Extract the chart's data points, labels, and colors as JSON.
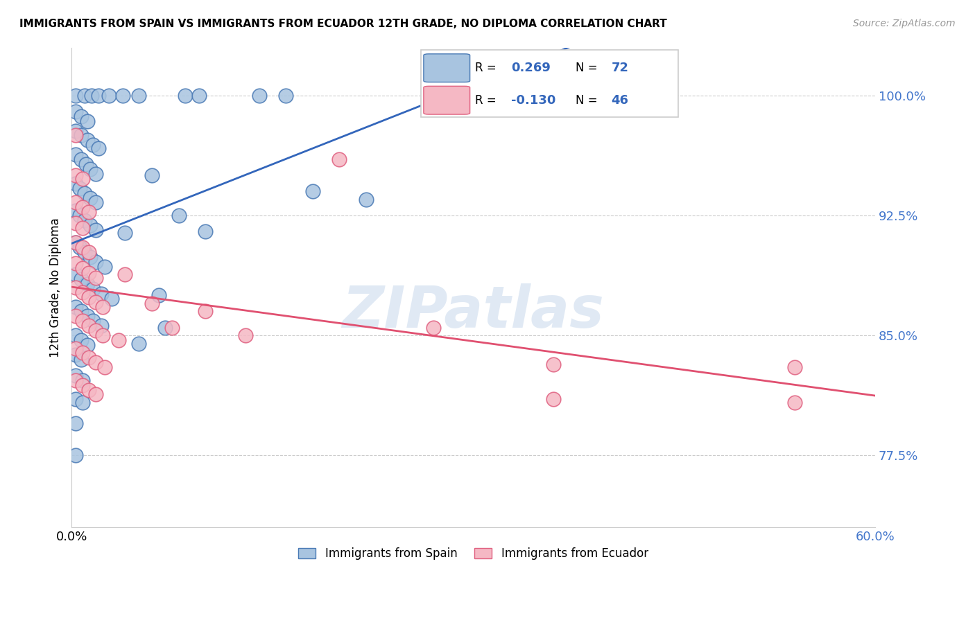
{
  "title": "IMMIGRANTS FROM SPAIN VS IMMIGRANTS FROM ECUADOR 12TH GRADE, NO DIPLOMA CORRELATION CHART",
  "source": "Source: ZipAtlas.com",
  "ylabel": "12th Grade, No Diploma",
  "legend_label_blue": "Immigrants from Spain",
  "legend_label_pink": "Immigrants from Ecuador",
  "watermark": "ZIPatlas",
  "blue_R": 0.269,
  "blue_N": 72,
  "pink_R": -0.13,
  "pink_N": 46,
  "blue_color": "#A8C4E0",
  "blue_edge_color": "#4A7AB5",
  "pink_color": "#F5B8C4",
  "pink_edge_color": "#E06080",
  "blue_line_color": "#3366BB",
  "pink_line_color": "#E05070",
  "ytick_color": "#4477CC",
  "xlim": [
    0.0,
    0.6
  ],
  "ylim": [
    0.73,
    1.03
  ],
  "yticks": [
    0.775,
    0.85,
    0.925,
    1.0
  ],
  "ytick_labels": [
    "77.5%",
    "85.0%",
    "92.5%",
    "100.0%"
  ],
  "blue_points": [
    [
      0.003,
      1.0
    ],
    [
      0.01,
      1.0
    ],
    [
      0.015,
      1.0
    ],
    [
      0.02,
      1.0
    ],
    [
      0.028,
      1.0
    ],
    [
      0.038,
      1.0
    ],
    [
      0.05,
      1.0
    ],
    [
      0.085,
      1.0
    ],
    [
      0.095,
      1.0
    ],
    [
      0.14,
      1.0
    ],
    [
      0.16,
      1.0
    ],
    [
      0.32,
      1.0
    ],
    [
      0.003,
      0.99
    ],
    [
      0.007,
      0.987
    ],
    [
      0.012,
      0.984
    ],
    [
      0.003,
      0.978
    ],
    [
      0.007,
      0.975
    ],
    [
      0.012,
      0.972
    ],
    [
      0.016,
      0.969
    ],
    [
      0.02,
      0.967
    ],
    [
      0.003,
      0.963
    ],
    [
      0.007,
      0.96
    ],
    [
      0.011,
      0.957
    ],
    [
      0.014,
      0.954
    ],
    [
      0.018,
      0.951
    ],
    [
      0.06,
      0.95
    ],
    [
      0.003,
      0.945
    ],
    [
      0.006,
      0.942
    ],
    [
      0.01,
      0.939
    ],
    [
      0.014,
      0.936
    ],
    [
      0.018,
      0.933
    ],
    [
      0.003,
      0.928
    ],
    [
      0.006,
      0.925
    ],
    [
      0.01,
      0.922
    ],
    [
      0.014,
      0.919
    ],
    [
      0.018,
      0.916
    ],
    [
      0.04,
      0.914
    ],
    [
      0.003,
      0.908
    ],
    [
      0.006,
      0.905
    ],
    [
      0.01,
      0.902
    ],
    [
      0.014,
      0.899
    ],
    [
      0.018,
      0.896
    ],
    [
      0.025,
      0.893
    ],
    [
      0.003,
      0.888
    ],
    [
      0.007,
      0.885
    ],
    [
      0.012,
      0.882
    ],
    [
      0.016,
      0.879
    ],
    [
      0.022,
      0.876
    ],
    [
      0.03,
      0.873
    ],
    [
      0.003,
      0.868
    ],
    [
      0.007,
      0.865
    ],
    [
      0.012,
      0.862
    ],
    [
      0.016,
      0.859
    ],
    [
      0.022,
      0.856
    ],
    [
      0.003,
      0.85
    ],
    [
      0.007,
      0.847
    ],
    [
      0.012,
      0.844
    ],
    [
      0.003,
      0.838
    ],
    [
      0.007,
      0.835
    ],
    [
      0.003,
      0.825
    ],
    [
      0.008,
      0.822
    ],
    [
      0.003,
      0.81
    ],
    [
      0.008,
      0.808
    ],
    [
      0.003,
      0.795
    ],
    [
      0.003,
      0.775
    ],
    [
      0.18,
      0.94
    ],
    [
      0.22,
      0.935
    ],
    [
      0.08,
      0.925
    ],
    [
      0.1,
      0.915
    ],
    [
      0.065,
      0.875
    ],
    [
      0.07,
      0.855
    ],
    [
      0.05,
      0.845
    ]
  ],
  "pink_points": [
    [
      0.003,
      0.975
    ],
    [
      0.003,
      0.95
    ],
    [
      0.008,
      0.948
    ],
    [
      0.003,
      0.933
    ],
    [
      0.008,
      0.93
    ],
    [
      0.013,
      0.927
    ],
    [
      0.003,
      0.92
    ],
    [
      0.008,
      0.917
    ],
    [
      0.003,
      0.908
    ],
    [
      0.008,
      0.905
    ],
    [
      0.013,
      0.902
    ],
    [
      0.003,
      0.895
    ],
    [
      0.008,
      0.892
    ],
    [
      0.013,
      0.889
    ],
    [
      0.018,
      0.886
    ],
    [
      0.003,
      0.88
    ],
    [
      0.008,
      0.877
    ],
    [
      0.013,
      0.874
    ],
    [
      0.018,
      0.871
    ],
    [
      0.023,
      0.868
    ],
    [
      0.003,
      0.862
    ],
    [
      0.008,
      0.859
    ],
    [
      0.013,
      0.856
    ],
    [
      0.018,
      0.853
    ],
    [
      0.023,
      0.85
    ],
    [
      0.035,
      0.847
    ],
    [
      0.003,
      0.842
    ],
    [
      0.008,
      0.839
    ],
    [
      0.013,
      0.836
    ],
    [
      0.018,
      0.833
    ],
    [
      0.025,
      0.83
    ],
    [
      0.003,
      0.822
    ],
    [
      0.008,
      0.819
    ],
    [
      0.013,
      0.816
    ],
    [
      0.018,
      0.813
    ],
    [
      0.04,
      0.888
    ],
    [
      0.06,
      0.87
    ],
    [
      0.075,
      0.855
    ],
    [
      0.1,
      0.865
    ],
    [
      0.13,
      0.85
    ],
    [
      0.2,
      0.96
    ],
    [
      0.27,
      0.855
    ],
    [
      0.36,
      0.832
    ],
    [
      0.36,
      0.81
    ],
    [
      0.54,
      0.83
    ],
    [
      0.54,
      0.808
    ]
  ]
}
